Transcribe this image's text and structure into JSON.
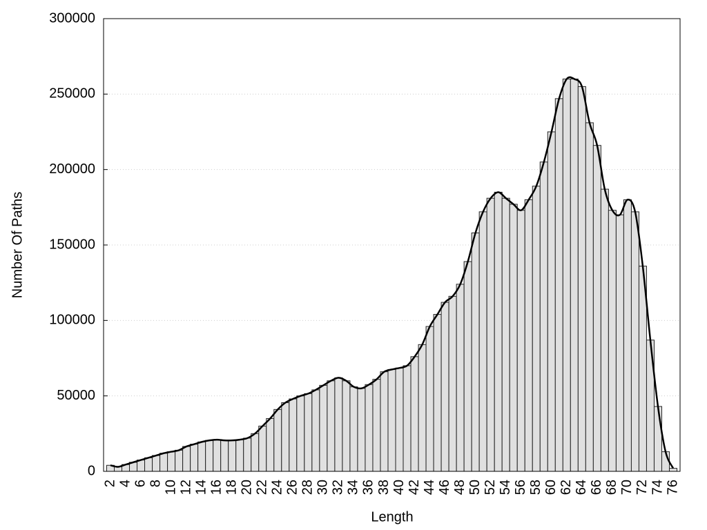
{
  "chart_data": {
    "type": "bar",
    "x_label": "Length",
    "y_label": "Number Of Paths",
    "categories": [
      "2",
      null,
      "4",
      null,
      "6",
      null,
      "8",
      null,
      "10",
      null,
      "12",
      null,
      "14",
      null,
      "16",
      null,
      "18",
      null,
      "20",
      null,
      "22",
      null,
      "24",
      null,
      "26",
      null,
      "28",
      null,
      "30",
      null,
      "32",
      null,
      "34",
      null,
      "36",
      null,
      "38",
      null,
      "40",
      null,
      "42",
      null,
      "44",
      null,
      "46",
      null,
      "48",
      null,
      "50",
      null,
      "52",
      null,
      "54",
      null,
      "56",
      null,
      "58",
      null,
      "60",
      null,
      "62",
      null,
      "64",
      null,
      "66",
      null,
      "68",
      null,
      "70",
      null,
      "72",
      null,
      "74",
      null,
      "76"
    ],
    "values": [
      4000,
      3000,
      4500,
      6000,
      7500,
      9000,
      10500,
      12000,
      13000,
      14000,
      16500,
      18000,
      19500,
      20500,
      21000,
      20500,
      20500,
      21000,
      22000,
      25000,
      30000,
      35000,
      41000,
      45500,
      48000,
      50000,
      51500,
      54000,
      57000,
      60000,
      62000,
      60000,
      56000,
      55000,
      57500,
      61000,
      66000,
      67500,
      68500,
      70000,
      76000,
      84000,
      96000,
      104000,
      112000,
      116000,
      124000,
      139000,
      158000,
      172000,
      181000,
      185000,
      181000,
      177000,
      173000,
      180000,
      189000,
      205000,
      225000,
      247000,
      260000,
      260000,
      255000,
      231000,
      216000,
      187000,
      173000,
      170000,
      180000,
      172000,
      136000,
      87000,
      43000,
      13000,
      2000
    ],
    "color": "#e0e0e0",
    "line_color": "#000000",
    "ylim": [
      0,
      300000
    ],
    "yticks": [
      0,
      50000,
      100000,
      150000,
      200000,
      250000,
      300000
    ],
    "grid": true
  }
}
